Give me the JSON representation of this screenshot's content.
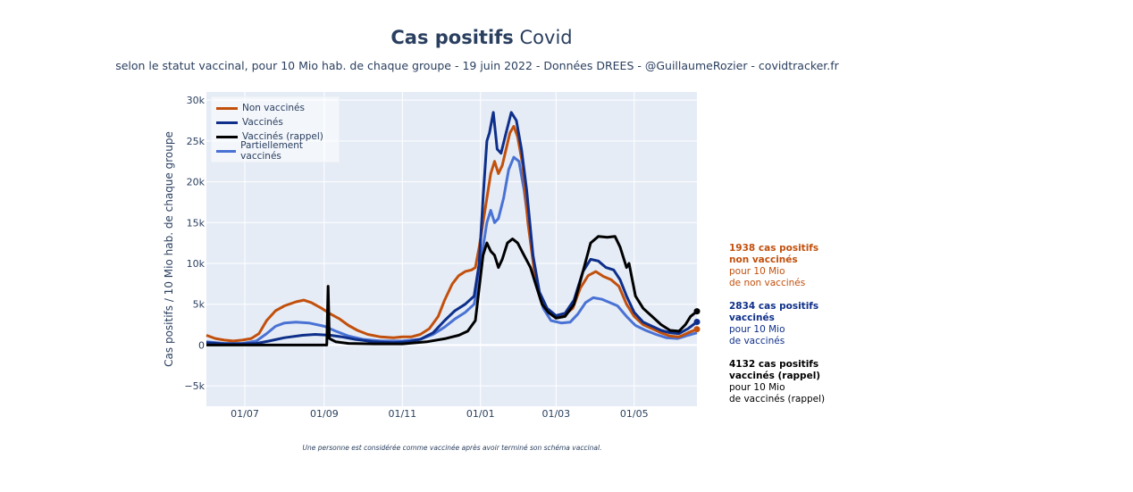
{
  "title": {
    "bold": "Cas positifs",
    "rest": "Covid"
  },
  "subtitle": "selon le statut vaccinal, pour 10 Mio hab. de chaque groupe - 19 juin 2022 - Données DREES - @GuillaumeRozier - covidtracker.fr",
  "footnote": "Une personne est considérée comme vaccinée après avoir terminé son schéma vaccinal.",
  "annotations": [
    {
      "bold1": "1938 cas positifs",
      "bold2": "non vaccinés",
      "line1": "pour 10 Mio",
      "line2": "de non vaccinés",
      "color": "#c2500d"
    },
    {
      "bold1": "2834 cas positifs",
      "bold2": "vaccinés",
      "line1": "pour 10 Mio",
      "line2": "de vaccinés",
      "color": "#0e2f8a"
    },
    {
      "bold1": "4132 cas positifs",
      "bold2": "vaccinés (rappel)",
      "line1": "pour 10 Mio",
      "line2": "de vaccinés (rappel)",
      "color": "#000000"
    }
  ],
  "chart_data": {
    "type": "line",
    "title": "Cas positifs Covid",
    "ylabel": "Cas positifs / 10 Mio hab. de chaque groupe",
    "xlabel": "",
    "xlim": [
      "2021-06-01",
      "2022-06-19"
    ],
    "ylim": [
      -7500,
      31000
    ],
    "grid": true,
    "legend_position": "top-left",
    "x_ticks": [
      {
        "date": "2021-07-01",
        "label": "01/07"
      },
      {
        "date": "2021-09-01",
        "label": "01/09"
      },
      {
        "date": "2021-11-01",
        "label": "01/11"
      },
      {
        "date": "2022-01-01",
        "label": "01/01"
      },
      {
        "date": "2022-03-01",
        "label": "01/03"
      },
      {
        "date": "2022-05-01",
        "label": "01/05"
      }
    ],
    "y_ticks": [
      {
        "value": -5000,
        "label": "−5k"
      },
      {
        "value": 0,
        "label": "0"
      },
      {
        "value": 5000,
        "label": "5k"
      },
      {
        "value": 10000,
        "label": "10k"
      },
      {
        "value": 15000,
        "label": "15k"
      },
      {
        "value": 20000,
        "label": "20k"
      },
      {
        "value": 25000,
        "label": "25k"
      },
      {
        "value": 30000,
        "label": "30k"
      }
    ],
    "series": [
      {
        "name": "Non vaccinés",
        "color": "#c2500d",
        "last_value": 1938,
        "points": [
          [
            "2021-06-01",
            1200
          ],
          [
            "2021-06-08",
            800
          ],
          [
            "2021-06-15",
            600
          ],
          [
            "2021-06-22",
            500
          ],
          [
            "2021-06-29",
            600
          ],
          [
            "2021-07-06",
            800
          ],
          [
            "2021-07-12",
            1400
          ],
          [
            "2021-07-18",
            3000
          ],
          [
            "2021-07-25",
            4200
          ],
          [
            "2021-08-01",
            4800
          ],
          [
            "2021-08-10",
            5300
          ],
          [
            "2021-08-16",
            5500
          ],
          [
            "2021-08-22",
            5200
          ],
          [
            "2021-08-30",
            4500
          ],
          [
            "2021-09-06",
            3800
          ],
          [
            "2021-09-13",
            3200
          ],
          [
            "2021-09-20",
            2400
          ],
          [
            "2021-09-27",
            1800
          ],
          [
            "2021-10-05",
            1300
          ],
          [
            "2021-10-15",
            1000
          ],
          [
            "2021-10-25",
            900
          ],
          [
            "2021-11-01",
            1000
          ],
          [
            "2021-11-08",
            1000
          ],
          [
            "2021-11-15",
            1300
          ],
          [
            "2021-11-22",
            2000
          ],
          [
            "2021-11-29",
            3500
          ],
          [
            "2021-12-04",
            5500
          ],
          [
            "2021-12-10",
            7500
          ],
          [
            "2021-12-15",
            8500
          ],
          [
            "2021-12-20",
            9000
          ],
          [
            "2021-12-25",
            9200
          ],
          [
            "2021-12-28",
            9500
          ],
          [
            "2021-12-31",
            12000
          ],
          [
            "2022-01-03",
            15000
          ],
          [
            "2022-01-06",
            18000
          ],
          [
            "2022-01-09",
            21000
          ],
          [
            "2022-01-12",
            22500
          ],
          [
            "2022-01-15",
            21000
          ],
          [
            "2022-01-18",
            22000
          ],
          [
            "2022-01-21",
            24000
          ],
          [
            "2022-01-24",
            26000
          ],
          [
            "2022-01-27",
            26800
          ],
          [
            "2022-01-30",
            25500
          ],
          [
            "2022-02-03",
            22000
          ],
          [
            "2022-02-07",
            15000
          ],
          [
            "2022-02-12",
            9000
          ],
          [
            "2022-02-17",
            5500
          ],
          [
            "2022-02-22",
            4200
          ],
          [
            "2022-03-01",
            3500
          ],
          [
            "2022-03-07",
            3600
          ],
          [
            "2022-03-14",
            4500
          ],
          [
            "2022-03-20",
            7000
          ],
          [
            "2022-03-26",
            8500
          ],
          [
            "2022-04-01",
            9000
          ],
          [
            "2022-04-07",
            8400
          ],
          [
            "2022-04-13",
            8000
          ],
          [
            "2022-04-19",
            7200
          ],
          [
            "2022-04-25",
            5000
          ],
          [
            "2022-05-01",
            3500
          ],
          [
            "2022-05-08",
            2500
          ],
          [
            "2022-05-15",
            2000
          ],
          [
            "2022-05-22",
            1500
          ],
          [
            "2022-05-29",
            1100
          ],
          [
            "2022-06-05",
            1000
          ],
          [
            "2022-06-12",
            1500
          ],
          [
            "2022-06-19",
            1938
          ]
        ]
      },
      {
        "name": "Vaccinés",
        "color": "#0e2f8a",
        "last_value": 2834,
        "points": [
          [
            "2021-06-01",
            300
          ],
          [
            "2021-06-15",
            150
          ],
          [
            "2021-06-29",
            150
          ],
          [
            "2021-07-10",
            200
          ],
          [
            "2021-07-20",
            500
          ],
          [
            "2021-08-01",
            900
          ],
          [
            "2021-08-15",
            1200
          ],
          [
            "2021-08-25",
            1300
          ],
          [
            "2021-09-06",
            1200
          ],
          [
            "2021-09-15",
            1000
          ],
          [
            "2021-09-25",
            700
          ],
          [
            "2021-10-10",
            400
          ],
          [
            "2021-10-25",
            300
          ],
          [
            "2021-11-05",
            400
          ],
          [
            "2021-11-15",
            700
          ],
          [
            "2021-11-25",
            1500
          ],
          [
            "2021-12-04",
            3000
          ],
          [
            "2021-12-12",
            4200
          ],
          [
            "2021-12-20",
            5000
          ],
          [
            "2021-12-27",
            6000
          ],
          [
            "2021-12-31",
            10000
          ],
          [
            "2022-01-03",
            18000
          ],
          [
            "2022-01-06",
            25000
          ],
          [
            "2022-01-08",
            26000
          ],
          [
            "2022-01-11",
            28500
          ],
          [
            "2022-01-14",
            24000
          ],
          [
            "2022-01-17",
            23500
          ],
          [
            "2022-01-21",
            26000
          ],
          [
            "2022-01-25",
            28500
          ],
          [
            "2022-01-29",
            27500
          ],
          [
            "2022-02-02",
            24000
          ],
          [
            "2022-02-06",
            19000
          ],
          [
            "2022-02-11",
            11000
          ],
          [
            "2022-02-16",
            6500
          ],
          [
            "2022-02-22",
            4500
          ],
          [
            "2022-03-01",
            3600
          ],
          [
            "2022-03-08",
            3900
          ],
          [
            "2022-03-15",
            5500
          ],
          [
            "2022-03-22",
            9000
          ],
          [
            "2022-03-28",
            10500
          ],
          [
            "2022-04-03",
            10300
          ],
          [
            "2022-04-09",
            9500
          ],
          [
            "2022-04-15",
            9200
          ],
          [
            "2022-04-20",
            8000
          ],
          [
            "2022-04-25",
            6000
          ],
          [
            "2022-05-01",
            4000
          ],
          [
            "2022-05-08",
            2800
          ],
          [
            "2022-05-15",
            2300
          ],
          [
            "2022-05-22",
            1800
          ],
          [
            "2022-05-29",
            1500
          ],
          [
            "2022-06-05",
            1400
          ],
          [
            "2022-06-12",
            2000
          ],
          [
            "2022-06-19",
            2834
          ]
        ]
      },
      {
        "name": "Vaccinés (rappel)",
        "color": "#000000",
        "last_value": 4132,
        "points": [
          [
            "2021-06-01",
            0
          ],
          [
            "2021-09-03",
            0
          ],
          [
            "2021-09-04",
            7200
          ],
          [
            "2021-09-05",
            800
          ],
          [
            "2021-09-10",
            400
          ],
          [
            "2021-09-20",
            200
          ],
          [
            "2021-10-10",
            150
          ],
          [
            "2021-11-01",
            150
          ],
          [
            "2021-11-20",
            400
          ],
          [
            "2021-12-05",
            800
          ],
          [
            "2021-12-15",
            1200
          ],
          [
            "2021-12-22",
            1700
          ],
          [
            "2021-12-28",
            3000
          ],
          [
            "2021-12-31",
            7000
          ],
          [
            "2022-01-03",
            11000
          ],
          [
            "2022-01-06",
            12500
          ],
          [
            "2022-01-09",
            11500
          ],
          [
            "2022-01-12",
            11000
          ],
          [
            "2022-01-15",
            9500
          ],
          [
            "2022-01-18",
            10500
          ],
          [
            "2022-01-22",
            12500
          ],
          [
            "2022-01-26",
            13000
          ],
          [
            "2022-01-30",
            12500
          ],
          [
            "2022-02-04",
            11000
          ],
          [
            "2022-02-09",
            9500
          ],
          [
            "2022-02-14",
            7000
          ],
          [
            "2022-02-18",
            5000
          ],
          [
            "2022-02-23",
            4000
          ],
          [
            "2022-03-01",
            3300
          ],
          [
            "2022-03-08",
            3500
          ],
          [
            "2022-03-15",
            5000
          ],
          [
            "2022-03-22",
            9000
          ],
          [
            "2022-03-28",
            12500
          ],
          [
            "2022-04-03",
            13300
          ],
          [
            "2022-04-10",
            13200
          ],
          [
            "2022-04-16",
            13300
          ],
          [
            "2022-04-20",
            12000
          ],
          [
            "2022-04-25",
            9500
          ],
          [
            "2022-04-27",
            10000
          ],
          [
            "2022-05-02",
            6000
          ],
          [
            "2022-05-08",
            4500
          ],
          [
            "2022-05-15",
            3500
          ],
          [
            "2022-05-22",
            2500
          ],
          [
            "2022-05-29",
            1800
          ],
          [
            "2022-06-05",
            1700
          ],
          [
            "2022-06-10",
            2500
          ],
          [
            "2022-06-14",
            3500
          ],
          [
            "2022-06-19",
            4132
          ]
        ]
      },
      {
        "name": "Partiellement vaccinés",
        "color": "#4a72d4",
        "last_value": 1500,
        "points": [
          [
            "2021-06-01",
            400
          ],
          [
            "2021-06-15",
            200
          ],
          [
            "2021-06-29",
            200
          ],
          [
            "2021-07-10",
            500
          ],
          [
            "2021-07-18",
            1400
          ],
          [
            "2021-07-25",
            2300
          ],
          [
            "2021-08-01",
            2700
          ],
          [
            "2021-08-10",
            2800
          ],
          [
            "2021-08-20",
            2700
          ],
          [
            "2021-09-01",
            2300
          ],
          [
            "2021-09-10",
            1700
          ],
          [
            "2021-09-20",
            1100
          ],
          [
            "2021-10-01",
            700
          ],
          [
            "2021-10-15",
            500
          ],
          [
            "2021-11-01",
            500
          ],
          [
            "2021-11-15",
            700
          ],
          [
            "2021-11-25",
            1300
          ],
          [
            "2021-12-04",
            2200
          ],
          [
            "2021-12-12",
            3200
          ],
          [
            "2021-12-20",
            4000
          ],
          [
            "2021-12-27",
            5000
          ],
          [
            "2021-12-31",
            8000
          ],
          [
            "2022-01-03",
            12000
          ],
          [
            "2022-01-06",
            15000
          ],
          [
            "2022-01-09",
            16500
          ],
          [
            "2022-01-12",
            15000
          ],
          [
            "2022-01-15",
            15500
          ],
          [
            "2022-01-19",
            18000
          ],
          [
            "2022-01-23",
            21500
          ],
          [
            "2022-01-27",
            23000
          ],
          [
            "2022-01-31",
            22500
          ],
          [
            "2022-02-04",
            19000
          ],
          [
            "2022-02-09",
            13000
          ],
          [
            "2022-02-14",
            7500
          ],
          [
            "2022-02-19",
            4500
          ],
          [
            "2022-02-25",
            3000
          ],
          [
            "2022-03-05",
            2700
          ],
          [
            "2022-03-12",
            2800
          ],
          [
            "2022-03-18",
            3800
          ],
          [
            "2022-03-24",
            5200
          ],
          [
            "2022-03-30",
            5800
          ],
          [
            "2022-04-06",
            5600
          ],
          [
            "2022-04-12",
            5200
          ],
          [
            "2022-04-18",
            4800
          ],
          [
            "2022-04-25",
            3500
          ],
          [
            "2022-05-02",
            2400
          ],
          [
            "2022-05-10",
            1800
          ],
          [
            "2022-05-18",
            1300
          ],
          [
            "2022-05-26",
            900
          ],
          [
            "2022-06-04",
            800
          ],
          [
            "2022-06-12",
            1200
          ],
          [
            "2022-06-19",
            1500
          ]
        ]
      }
    ]
  }
}
